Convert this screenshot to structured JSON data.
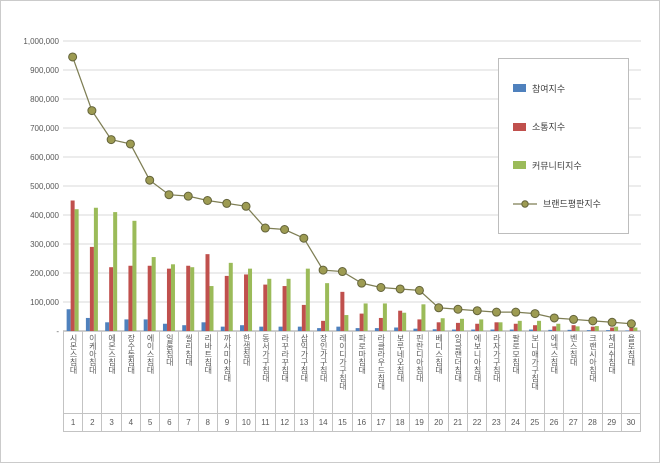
{
  "chart_data": {
    "type": "bar+line",
    "title": "",
    "xlabel": "",
    "ylabel": "",
    "ylim": [
      0,
      1000000
    ],
    "ytick_step": 100000,
    "grid": true,
    "legend_position": "upper right",
    "ytick_labels_top_down": [
      "1,000,000",
      "900,000",
      "800,000",
      "700,000",
      "600,000",
      "500,000",
      "400,000",
      "300,000",
      "200,000",
      "100,000",
      "-"
    ],
    "categories": [
      "시몬스침대",
      "이케아침대",
      "에몬스침대",
      "장수돌침대",
      "에이스침대",
      "일룸침대",
      "씰리침대",
      "리바트침대",
      "까사미아침대",
      "한샘침대",
      "동서가구침대",
      "라꾸라꾸침대",
      "삼익가구침대",
      "장인가구침대",
      "레이디가구침대",
      "파로마침대",
      "라클라우드침대",
      "보루네오침대",
      "핀란디아침대",
      "베디스침대",
      "잉글랜더침대",
      "에보니아침대",
      "라자가구침대",
      "팔로모침대",
      "보니애가구침대",
      "에넥스침대",
      "벤스침대",
      "크랜시아침대",
      "체리쉬침대",
      "욜로침대"
    ],
    "ranks": [
      "1",
      "2",
      "3",
      "4",
      "5",
      "6",
      "7",
      "8",
      "9",
      "10",
      "11",
      "12",
      "13",
      "14",
      "15",
      "16",
      "17",
      "18",
      "19",
      "20",
      "21",
      "22",
      "23",
      "24",
      "25",
      "26",
      "27",
      "28",
      "29",
      "30"
    ],
    "series": [
      {
        "key": "participation",
        "name": "참여지수",
        "type": "bar",
        "color": "#4F81BD",
        "values": [
          75000,
          45000,
          30000,
          40000,
          40000,
          25000,
          20000,
          30000,
          15000,
          20000,
          15000,
          15000,
          15000,
          10000,
          15000,
          10000,
          10000,
          12000,
          8000,
          6000,
          5000,
          5000,
          5000,
          5000,
          5000,
          4000,
          4000,
          3000,
          3000,
          2000
        ]
      },
      {
        "key": "communication",
        "name": "소통지수",
        "type": "bar",
        "color": "#C0504D",
        "values": [
          450000,
          290000,
          220000,
          225000,
          225000,
          215000,
          225000,
          265000,
          190000,
          195000,
          160000,
          155000,
          90000,
          35000,
          135000,
          60000,
          45000,
          70000,
          40000,
          30000,
          28000,
          25000,
          30000,
          25000,
          20000,
          16000,
          20000,
          15000,
          12000,
          11000
        ]
      },
      {
        "key": "community",
        "name": "커뮤니티지수",
        "type": "bar",
        "color": "#9BBB59",
        "values": [
          420000,
          425000,
          410000,
          380000,
          255000,
          230000,
          220000,
          155000,
          235000,
          215000,
          180000,
          180000,
          215000,
          165000,
          55000,
          95000,
          95000,
          63000,
          92000,
          44000,
          42000,
          40000,
          30000,
          35000,
          35000,
          25000,
          16000,
          17000,
          15000,
          12000
        ]
      },
      {
        "key": "reputation",
        "name": "브랜드평판지수",
        "type": "line",
        "color": "#7E7E54",
        "marker_fill": "#9D9B52",
        "marker_stroke": "#63633A",
        "values": [
          945000,
          760000,
          660000,
          645000,
          520000,
          470000,
          465000,
          450000,
          440000,
          430000,
          355000,
          350000,
          320000,
          210000,
          205000,
          165000,
          150000,
          145000,
          140000,
          80000,
          75000,
          70000,
          65000,
          65000,
          60000,
          45000,
          40000,
          35000,
          30000,
          25000
        ]
      }
    ]
  }
}
